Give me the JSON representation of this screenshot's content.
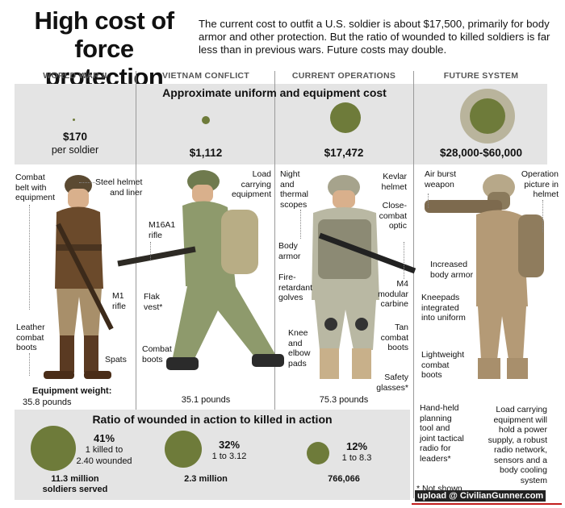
{
  "header": {
    "title": "High cost of force protection",
    "title_line1": "High cost of",
    "title_line2": "force protection",
    "intro": "The current cost to outfit a U.S. soldier is about $17,500, primarily for body armor and other protection. But the ratio of wounded to killed soldiers is far less than in previous wars. Future costs may double."
  },
  "columns": [
    {
      "heading": "WORLD WAR II",
      "cost": "$170",
      "cost_sub": "per soldier",
      "weight": "35.8 pounds",
      "weight_label": "Equipment weight:",
      "pct": "41%",
      "ratio_line1": "1 killed to",
      "ratio_line2": "2.40 wounded",
      "served_line1": "11.3 million",
      "served_line2": "soldiers served"
    },
    {
      "heading": "VIETNAM CONFLICT",
      "cost": "$1,112",
      "weight": "35.1 pounds",
      "pct": "32%",
      "ratio_line1": "1 to 3.12",
      "served_line1": "2.3 million"
    },
    {
      "heading": "CURRENT OPERATIONS",
      "cost": "$17,472",
      "weight": "75.3 pounds",
      "pct": "12%",
      "ratio_line1": "1 to 8.3",
      "served_line1": "766,066"
    },
    {
      "heading": "FUTURE SYSTEM",
      "cost": "$28,000-$60,000"
    }
  ],
  "sections": {
    "cost_heading": "Approximate uniform and equipment cost",
    "ratio_heading": "Ratio of wounded in action to killed in action"
  },
  "labels": {
    "ww2_belt": "Combat\nbelt with\nequipment",
    "ww2_helmet": "Steel helmet\nand liner",
    "ww2_rifle": "M1\nrifle",
    "ww2_boots": "Leather\ncombat\nboots",
    "ww2_spats": "Spats",
    "vn_load": "Load\ncarrying\nequipment",
    "vn_rifle": "M16A1\nrifle",
    "vn_vest": "Flak\nvest*",
    "vn_boots": "Combat\nboots",
    "cur_night": "Night\nand\nthermal\nscopes",
    "cur_kevlar": "Kevlar\nhelmet",
    "cur_optic": "Close-\ncombat\noptic",
    "cur_armor": "Body\narmor",
    "cur_gloves": "Fire-\nretardant\ngolves",
    "cur_carbine": "M4\nmodular\ncarbine",
    "cur_pads": "Knee\nand\nelbow\npads",
    "cur_tan": "Tan\ncombat\nboots",
    "cur_glasses": "Safety\nglasses*",
    "fut_air": "Air burst\nweapon",
    "fut_op": "Operation\npicture in\nhelmet",
    "fut_armor": "Increased\nbody armor",
    "fut_knee": "Kneepads\nintegrated\ninto uniform",
    "fut_boots": "Lightweight\ncombat\nboots",
    "fut_radio": "Hand-held\nplanning\ntool and\njoint tactical\nradio for\nleaders*",
    "fut_load": "Load carrying\nequipment will\nhold a power\nsupply, a robust\nradio network,\nsensors and a\nbody cooling\nsystem"
  },
  "footnote": "* Not shown",
  "watermark": "upload @ CivilianGunner.com",
  "colors": {
    "circle": "#6e7b3a",
    "panel": "#e4e4e4",
    "uniform_ww2": "#6b4a2b",
    "uniform_vn": "#8e9a6c",
    "uniform_cur": "#b9b8a3",
    "uniform_fut": "#b49a76"
  },
  "cost_circles": [
    {
      "era": "WORLD WAR II",
      "amount": 170
    },
    {
      "era": "VIETNAM CONFLICT",
      "amount": 1112
    },
    {
      "era": "CURRENT OPERATIONS",
      "amount": 17472
    },
    {
      "era": "FUTURE SYSTEM",
      "amount_low": 28000,
      "amount_high": 60000
    }
  ],
  "ratio_circles": [
    {
      "era": "WORLD WAR II",
      "percent": 41
    },
    {
      "era": "VIETNAM CONFLICT",
      "percent": 32
    },
    {
      "era": "CURRENT OPERATIONS",
      "percent": 12
    }
  ]
}
